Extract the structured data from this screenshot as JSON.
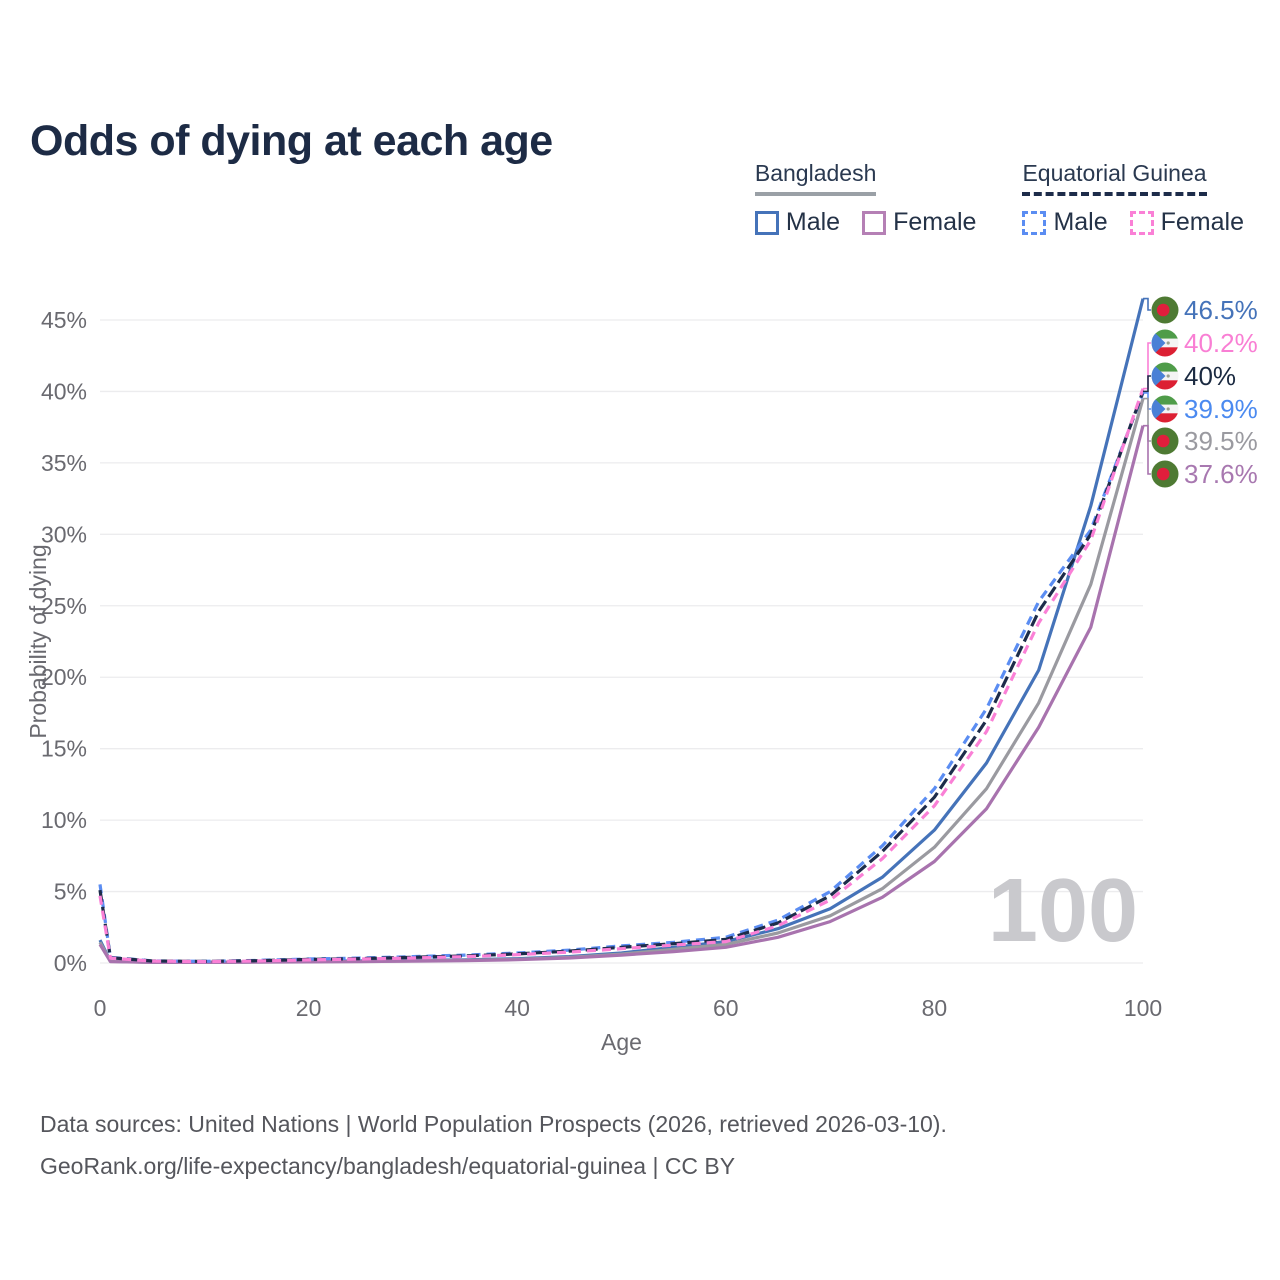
{
  "title": "Odds of dying at each age",
  "legend": {
    "groups": [
      {
        "name": "Bangladesh",
        "line_style": "solid",
        "underline_color": "#9aa0a6",
        "items": [
          {
            "label": "Male",
            "color": "#4573b9",
            "dashed": false
          },
          {
            "label": "Female",
            "color": "#b580b5",
            "dashed": false
          }
        ]
      },
      {
        "name": "Equatorial Guinea",
        "line_style": "dashed",
        "underline_color": "#1d2c4a",
        "items": [
          {
            "label": "Male",
            "color": "#5b8df2",
            "dashed": true
          },
          {
            "label": "Female",
            "color": "#fa80d6",
            "dashed": true
          }
        ]
      }
    ]
  },
  "chart_data": {
    "type": "line",
    "title": "Odds of dying at each age",
    "xlabel": "Age",
    "ylabel": "Probability of dying",
    "xlim": [
      0,
      100
    ],
    "ylim": [
      0,
      45
    ],
    "grid": "horizontal",
    "legend_position": "top-right",
    "hover_age": "100",
    "x_ticks": [
      {
        "v": 0,
        "label": "0"
      },
      {
        "v": 20,
        "label": "20"
      },
      {
        "v": 40,
        "label": "40"
      },
      {
        "v": 60,
        "label": "60"
      },
      {
        "v": 80,
        "label": "80"
      },
      {
        "v": 100,
        "label": "100"
      }
    ],
    "y_ticks": [
      {
        "v": 0,
        "label": "0%"
      },
      {
        "v": 5,
        "label": "5%"
      },
      {
        "v": 10,
        "label": "10%"
      },
      {
        "v": 15,
        "label": "15%"
      },
      {
        "v": 20,
        "label": "20%"
      },
      {
        "v": 25,
        "label": "25%"
      },
      {
        "v": 30,
        "label": "30%"
      },
      {
        "v": 35,
        "label": "35%"
      },
      {
        "v": 40,
        "label": "40%"
      },
      {
        "v": 45,
        "label": "45%"
      }
    ],
    "x": [
      0,
      1,
      5,
      10,
      15,
      20,
      25,
      30,
      35,
      40,
      45,
      50,
      55,
      60,
      65,
      70,
      75,
      80,
      85,
      90,
      95,
      100
    ],
    "series": [
      {
        "id": "bd_male",
        "name": "Bangladesh Male",
        "country": "Bangladesh",
        "sex": "Male",
        "style": "solid",
        "color": "#4573b9",
        "flag": "bd",
        "end_label": "46.5%",
        "label_color": "#4573b9",
        "values": [
          1.6,
          0.12,
          0.05,
          0.05,
          0.08,
          0.12,
          0.15,
          0.18,
          0.22,
          0.3,
          0.45,
          0.7,
          1.1,
          1.5,
          2.4,
          3.8,
          6.0,
          9.3,
          14.0,
          20.5,
          32.0,
          46.5
        ]
      },
      {
        "id": "bd_all",
        "name": "Bangladesh Both sexes",
        "country": "Bangladesh",
        "sex": "Both",
        "style": "solid",
        "color": "#9a9aa0",
        "flag": "bd",
        "end_label": "39.5%",
        "label_color": "#9a9aa0",
        "values": [
          1.45,
          0.11,
          0.05,
          0.04,
          0.07,
          0.1,
          0.12,
          0.15,
          0.19,
          0.26,
          0.4,
          0.62,
          0.95,
          1.3,
          2.1,
          3.3,
          5.2,
          8.1,
          12.2,
          18.2,
          26.5,
          39.5
        ]
      },
      {
        "id": "bd_female",
        "name": "Bangladesh Female",
        "country": "Bangladesh",
        "sex": "Female",
        "style": "solid",
        "color": "#a873ae",
        "flag": "bd",
        "end_label": "37.6%",
        "label_color": "#a878b0",
        "values": [
          1.3,
          0.1,
          0.04,
          0.04,
          0.06,
          0.08,
          0.1,
          0.13,
          0.16,
          0.23,
          0.35,
          0.55,
          0.8,
          1.1,
          1.8,
          2.9,
          4.6,
          7.1,
          10.8,
          16.5,
          23.5,
          37.6
        ]
      },
      {
        "id": "eg_male",
        "name": "Equatorial Guinea Male",
        "country": "Equatorial Guinea",
        "sex": "Male",
        "style": "dashed",
        "color": "#5b8df2",
        "flag": "eg",
        "end_label": "39.9%",
        "label_color": "#4b8af0",
        "values": [
          5.5,
          0.4,
          0.15,
          0.12,
          0.18,
          0.28,
          0.35,
          0.45,
          0.55,
          0.7,
          0.9,
          1.2,
          1.45,
          1.8,
          3.0,
          5.0,
          8.2,
          12.2,
          17.8,
          25.3,
          30.3,
          39.9
        ]
      },
      {
        "id": "eg_all",
        "name": "Equatorial Guinea Both sexes",
        "country": "Equatorial Guinea",
        "sex": "Both",
        "style": "dashed",
        "color": "#1d2c4a",
        "flag": "eg",
        "end_label": "40%",
        "label_color": "#1b2a41",
        "values": [
          5.1,
          0.37,
          0.14,
          0.11,
          0.16,
          0.25,
          0.31,
          0.4,
          0.5,
          0.64,
          0.83,
          1.1,
          1.35,
          1.65,
          2.8,
          4.7,
          7.8,
          11.6,
          17.0,
          24.6,
          30.0,
          40.0
        ]
      },
      {
        "id": "eg_female",
        "name": "Equatorial Guinea Female",
        "country": "Equatorial Guinea",
        "sex": "Female",
        "style": "dashed",
        "color": "#fa80d6",
        "flag": "eg",
        "end_label": "40.2%",
        "label_color": "#f97fd4",
        "values": [
          4.7,
          0.34,
          0.13,
          0.1,
          0.14,
          0.22,
          0.28,
          0.35,
          0.44,
          0.58,
          0.76,
          1.0,
          1.25,
          1.5,
          2.6,
          4.4,
          7.3,
          11.0,
          16.2,
          23.8,
          29.6,
          40.2
        ]
      }
    ],
    "end_label_order": [
      "bd_male",
      "eg_female",
      "eg_all",
      "eg_male",
      "bd_all",
      "bd_female"
    ]
  },
  "footer": {
    "line1": "Data sources: United Nations | World Population Prospects (2026, retrieved 2026-03-10).",
    "line2": "GeoRank.org/life-expectancy/bangladesh/equatorial-guinea | CC BY"
  }
}
